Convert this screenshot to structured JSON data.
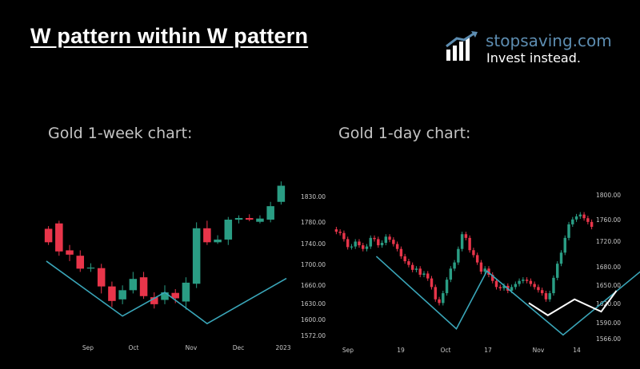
{
  "page": {
    "title": "W pattern within W pattern"
  },
  "brand": {
    "name": "stopsaving.com",
    "tagline": "Invest instead."
  },
  "colors": {
    "up": "#2a9d84",
    "down": "#e8354a",
    "pattern_line": "#3aa6b9",
    "inner_pattern": "#ffffff"
  },
  "chart_data": [
    {
      "type": "candlestick",
      "title": "Gold 1-week chart:",
      "x_ticks": [
        "Sep",
        "Oct",
        "Nov",
        "Dec",
        "2023"
      ],
      "y_ticks": [
        "1830.00",
        "1780.00",
        "1740.00",
        "1700.00",
        "1660.00",
        "1630.00",
        "1600.00",
        "1572.00"
      ],
      "ylim": [
        1560,
        1860
      ],
      "candles": [
        {
          "o": 1770,
          "c": 1745,
          "h": 1775,
          "l": 1740
        },
        {
          "o": 1780,
          "c": 1728,
          "h": 1785,
          "l": 1720
        },
        {
          "o": 1730,
          "c": 1722,
          "h": 1740,
          "l": 1710
        },
        {
          "o": 1720,
          "c": 1696,
          "h": 1730,
          "l": 1690
        },
        {
          "o": 1698,
          "c": 1698,
          "h": 1706,
          "l": 1690
        },
        {
          "o": 1697,
          "c": 1663,
          "h": 1705,
          "l": 1650
        },
        {
          "o": 1663,
          "c": 1636,
          "h": 1672,
          "l": 1625
        },
        {
          "o": 1639,
          "c": 1656,
          "h": 1665,
          "l": 1630
        },
        {
          "o": 1656,
          "c": 1677,
          "h": 1690,
          "l": 1650
        },
        {
          "o": 1680,
          "c": 1645,
          "h": 1690,
          "l": 1640
        },
        {
          "o": 1643,
          "c": 1630,
          "h": 1652,
          "l": 1622
        },
        {
          "o": 1638,
          "c": 1652,
          "h": 1665,
          "l": 1630
        },
        {
          "o": 1651,
          "c": 1641,
          "h": 1658,
          "l": 1632
        },
        {
          "o": 1635,
          "c": 1670,
          "h": 1680,
          "l": 1620
        },
        {
          "o": 1668,
          "c": 1771,
          "h": 1782,
          "l": 1660
        },
        {
          "o": 1771,
          "c": 1745,
          "h": 1785,
          "l": 1740
        },
        {
          "o": 1745,
          "c": 1750,
          "h": 1758,
          "l": 1742
        },
        {
          "o": 1750,
          "c": 1787,
          "h": 1792,
          "l": 1740
        },
        {
          "o": 1787,
          "c": 1790,
          "h": 1795,
          "l": 1780
        },
        {
          "o": 1790,
          "c": 1787,
          "h": 1797,
          "l": 1784
        },
        {
          "o": 1783,
          "c": 1789,
          "h": 1795,
          "l": 1780
        },
        {
          "o": 1787,
          "c": 1812,
          "h": 1820,
          "l": 1782
        },
        {
          "o": 1820,
          "c": 1850,
          "h": 1858,
          "l": 1815
        }
      ],
      "pattern_w": [
        [
          0.3,
          1710
        ],
        [
          7.5,
          1608
        ],
        [
          11.5,
          1652
        ],
        [
          15.5,
          1594
        ],
        [
          23,
          1678
        ]
      ]
    },
    {
      "type": "candlestick",
      "title": "Gold 1-day chart:",
      "x_ticks": [
        "Sep",
        "19",
        "Oct",
        "17",
        "Nov",
        "14"
      ],
      "y_ticks": [
        "1800.00",
        "1760.00",
        "1720.00",
        "1680.00",
        "1650.00",
        "1620.00",
        "1590.00",
        "1566.00"
      ],
      "ylim": [
        1550,
        1820
      ],
      "closes": [
        1740,
        1738,
        1728,
        1715,
        1716,
        1724,
        1718,
        1712,
        1716,
        1730,
        1728,
        1718,
        1722,
        1732,
        1727,
        1720,
        1712,
        1700,
        1692,
        1686,
        1678,
        1680,
        1670,
        1672,
        1664,
        1650,
        1630,
        1624,
        1640,
        1662,
        1680,
        1690,
        1712,
        1736,
        1730,
        1710,
        1702,
        1690,
        1675,
        1680,
        1670,
        1660,
        1650,
        1648,
        1652,
        1644,
        1650,
        1655,
        1660,
        1662,
        1660,
        1655,
        1650,
        1645,
        1640,
        1630,
        1640,
        1665,
        1688,
        1706,
        1730,
        1752,
        1760,
        1765,
        1768,
        1762,
        1756,
        1748
      ],
      "pattern_w": [
        [
          11,
          1700
        ],
        [
          32,
          1582
        ],
        [
          40,
          1676
        ],
        [
          60,
          1572
        ],
        [
          82,
          1684
        ]
      ],
      "inner_w": [
        [
          51,
          1624
        ],
        [
          56,
          1604
        ],
        [
          63,
          1630
        ],
        [
          70,
          1610
        ],
        [
          74,
          1644
        ]
      ]
    }
  ]
}
